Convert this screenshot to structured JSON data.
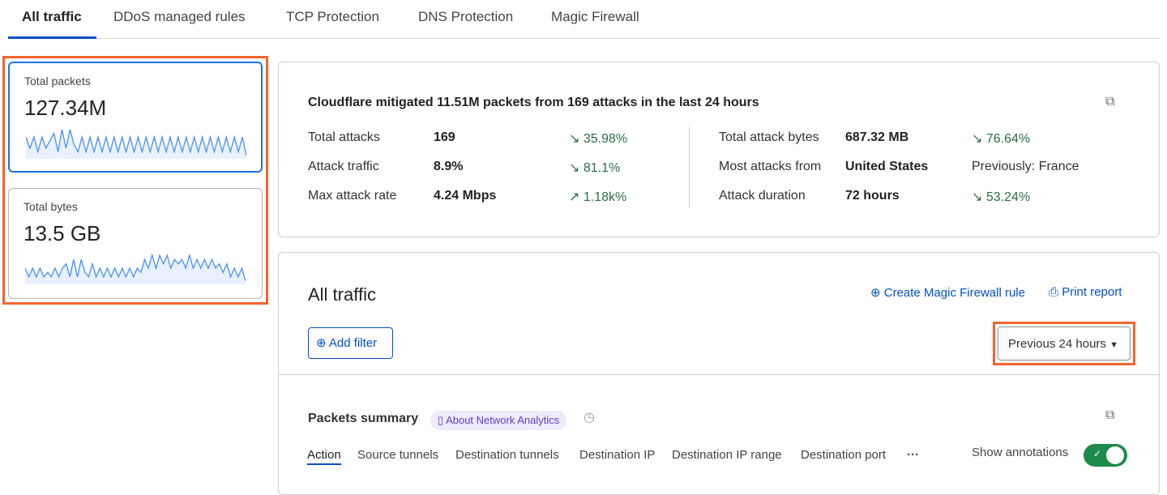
{
  "tabs": [
    "All traffic",
    "DDoS managed rules",
    "TCP Protection",
    "DNS Protection",
    "Magic Firewall"
  ],
  "cards": [
    {
      "label": "Total packets",
      "value": "127.34M",
      "spark": [
        5,
        2,
        5,
        1,
        5,
        2,
        4,
        6,
        1,
        7,
        2,
        7,
        3,
        1,
        5,
        1,
        5,
        1,
        5,
        1,
        5,
        1,
        5,
        1,
        5,
        1,
        5,
        1,
        5,
        1,
        5,
        1,
        5,
        1,
        5,
        1,
        5,
        1,
        5,
        1,
        5,
        1,
        5,
        1,
        5,
        1,
        5,
        1,
        5,
        1,
        5,
        1,
        5,
        1,
        5,
        0
      ]
    },
    {
      "label": "Total bytes",
      "value": "13.5 GB",
      "spark": [
        3,
        1,
        3,
        1,
        3,
        1,
        2,
        1,
        3,
        1,
        3,
        4,
        1,
        5,
        1,
        5,
        2,
        1,
        4,
        1,
        3,
        1,
        3,
        1,
        3,
        1,
        3,
        1,
        3,
        1,
        3,
        2,
        5,
        3,
        6,
        3,
        6,
        4,
        6,
        3,
        5,
        4,
        5,
        3,
        6,
        3,
        5,
        3,
        5,
        3,
        5,
        3,
        4,
        2,
        4,
        1,
        3,
        1,
        3,
        0
      ]
    }
  ],
  "summary": {
    "headline": "Cloudflare mitigated 11.51M packets from 169 attacks in the last 24 hours",
    "left": [
      {
        "label": "Total attacks",
        "value": "169",
        "dir": "down",
        "delta": "35.98%"
      },
      {
        "label": "Attack traffic",
        "value": "8.9%",
        "dir": "down",
        "delta": "81.1%"
      },
      {
        "label": "Max attack rate",
        "value": "4.24 Mbps",
        "dir": "up",
        "delta": "1.18k%"
      }
    ],
    "right": [
      {
        "label": "Total attack bytes",
        "value": "687.32 MB",
        "dir": "down",
        "delta": "76.64%"
      },
      {
        "label": "Most attacks from",
        "value": "United States",
        "dir": "",
        "delta": "Previously: France"
      },
      {
        "label": "Attack duration",
        "value": "72 hours",
        "dir": "down",
        "delta": "53.24%"
      }
    ]
  },
  "traffic": {
    "title": "All traffic",
    "create_rule": "Create Magic Firewall rule",
    "print": "Print report",
    "add_filter": "Add filter",
    "time_range": "Previous 24 hours"
  },
  "packets": {
    "title": "Packets summary",
    "about": "About Network Analytics",
    "subtabs": [
      "Action",
      "Source tunnels",
      "Destination tunnels",
      "Destination IP",
      "Destination IP range",
      "Destination port"
    ],
    "annotations_label": "Show annotations",
    "annotations_on": true
  },
  "colors": {
    "accent": "#0051c3",
    "highlight": "#f6652d",
    "toggle": "#1e8a4c",
    "spark": "#4a90f0"
  }
}
